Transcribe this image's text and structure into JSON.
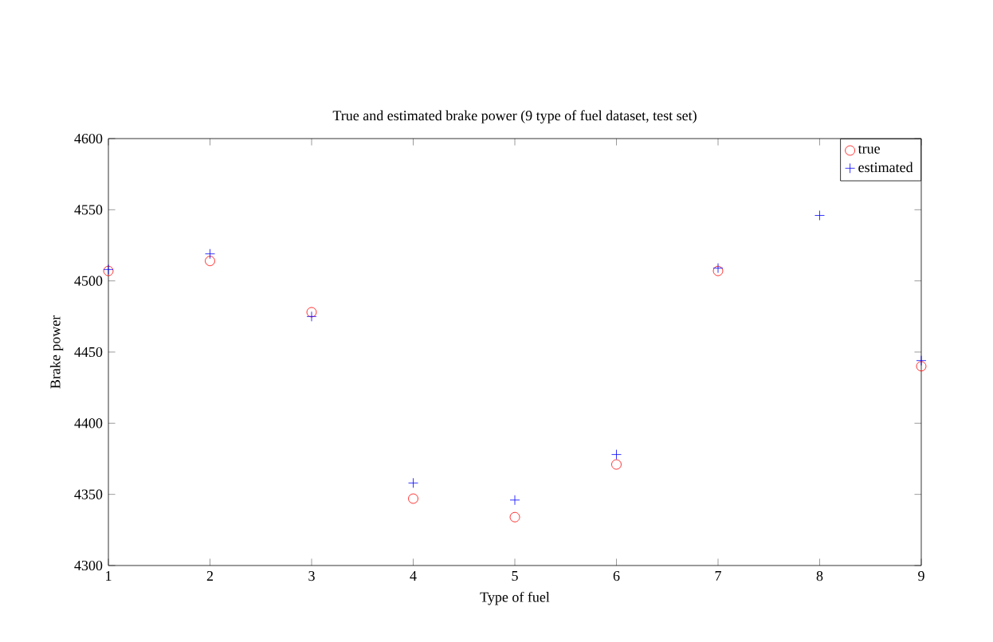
{
  "chart_data": {
    "type": "scatter",
    "title": "True and estimated brake power (9 type of fuel dataset, test set)",
    "xlabel": "Type of fuel",
    "ylabel": "Brake power",
    "x": [
      1,
      2,
      3,
      4,
      5,
      6,
      7,
      8,
      9
    ],
    "series": [
      {
        "name": "true",
        "color": "#ff0000",
        "marker": "circle",
        "values": [
          4507,
          4514,
          4478,
          4347,
          4334,
          4371,
          4507,
          null,
          4440
        ]
      },
      {
        "name": "estimated",
        "color": "#0000ff",
        "marker": "cross",
        "values": [
          4508,
          4519,
          4475,
          4358,
          4346,
          4378,
          4509,
          4546,
          4444
        ]
      }
    ],
    "xlim": [
      1,
      9
    ],
    "xticks": [
      1,
      2,
      3,
      4,
      5,
      6,
      7,
      8,
      9
    ],
    "ylim": [
      4300,
      4600
    ],
    "yticks": [
      4300,
      4350,
      4400,
      4450,
      4500,
      4550,
      4600
    ],
    "grid": false,
    "legend": "top right"
  }
}
